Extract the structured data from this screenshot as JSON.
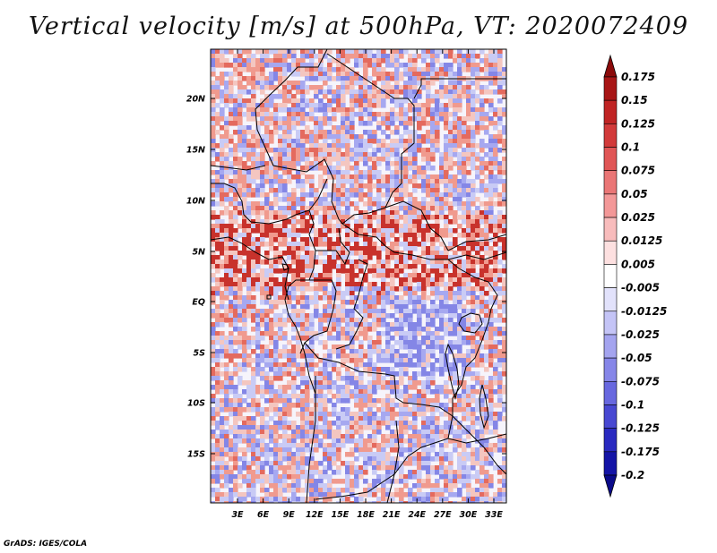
{
  "title": "Vertical velocity [m/s] at 500hPa, VT: 2020072409",
  "credit": "GrADS: IGES/COLA",
  "lat_labels": [
    "20N",
    "15N",
    "10N",
    "5N",
    "EQ",
    "5S",
    "10S",
    "15S"
  ],
  "lon_labels": [
    "3E",
    "6E",
    "9E",
    "12E",
    "15E",
    "18E",
    "21E",
    "24E",
    "27E",
    "30E",
    "33E"
  ],
  "colorbar": {
    "labels": [
      "0.175",
      "0.15",
      "0.125",
      "0.1",
      "0.075",
      "0.05",
      "0.025",
      "0.0125",
      "0.005",
      "-0.005",
      "-0.0125",
      "-0.025",
      "-0.05",
      "-0.075",
      "-0.1",
      "-0.125",
      "-0.175",
      "-0.2"
    ],
    "colors": [
      "#8b0a0a",
      "#a81616",
      "#c02424",
      "#d23a3a",
      "#e05656",
      "#ea7676",
      "#f39898",
      "#f8bcbc",
      "#fde0e0",
      "#ffffff",
      "#e2e2fb",
      "#c4c4f6",
      "#a4a4ef",
      "#8686e8",
      "#6868df",
      "#4848d2",
      "#2a2ac0",
      "#1414a6",
      "#0a0a8a"
    ]
  },
  "field_colors": {
    "positive": "#f09a8e",
    "negative": "#9a9cef",
    "neutral": "#f7f5fa",
    "boundary": "#000000"
  }
}
